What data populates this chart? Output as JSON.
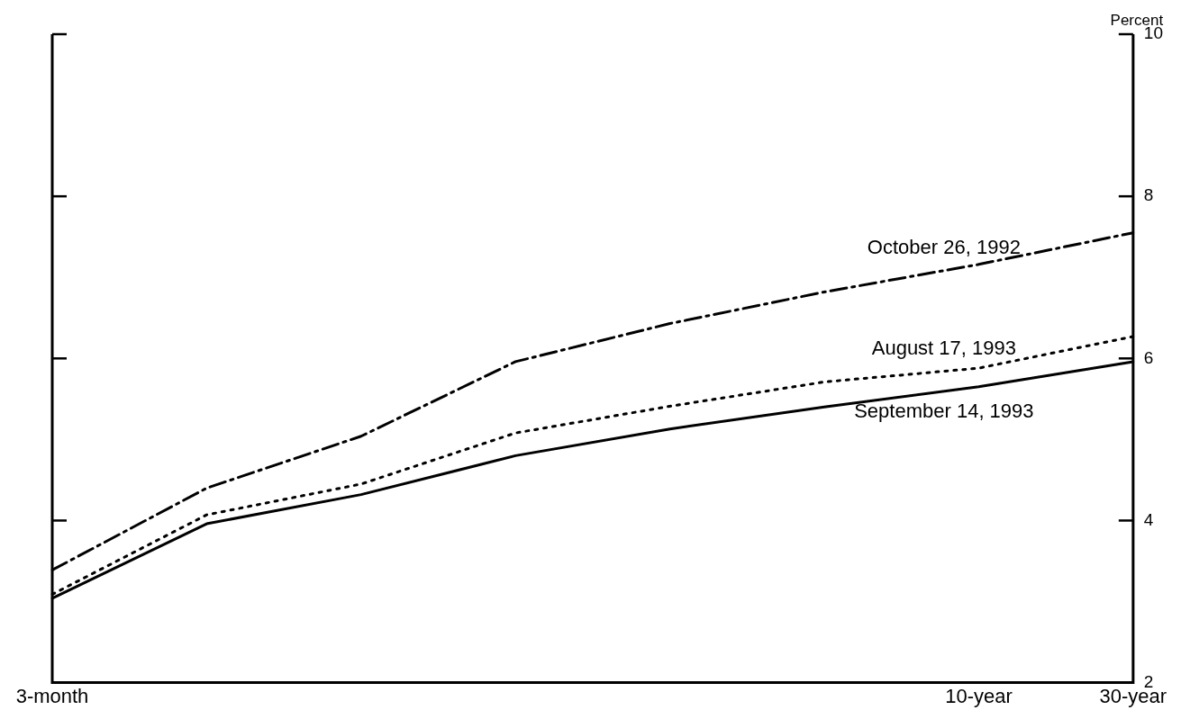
{
  "chart_data": {
    "type": "line",
    "ylabel": "Percent",
    "categories": [
      "3-month",
      null,
      null,
      null,
      null,
      null,
      "10-year",
      "30-year"
    ],
    "ylim": [
      2,
      10
    ],
    "yticks": [
      2,
      4,
      6,
      8,
      10
    ],
    "series": [
      {
        "name": "October 26, 1992",
        "color": "#000000",
        "line_style": "dashed",
        "values": [
          3.39,
          4.4,
          5.04,
          5.96,
          6.43,
          6.82,
          7.16,
          7.55
        ]
      },
      {
        "name": "August 17, 1993",
        "color": "#000000",
        "line_style": "dotted",
        "values": [
          3.09,
          4.07,
          4.45,
          5.08,
          5.41,
          5.71,
          5.88,
          6.27
        ]
      },
      {
        "name": "September 14, 1993",
        "color": "#000000",
        "line_style": "solid",
        "values": [
          3.04,
          3.96,
          4.32,
          4.8,
          5.13,
          5.4,
          5.65,
          5.96
        ]
      }
    ],
    "grid": false,
    "legend": false,
    "marker": "none"
  }
}
